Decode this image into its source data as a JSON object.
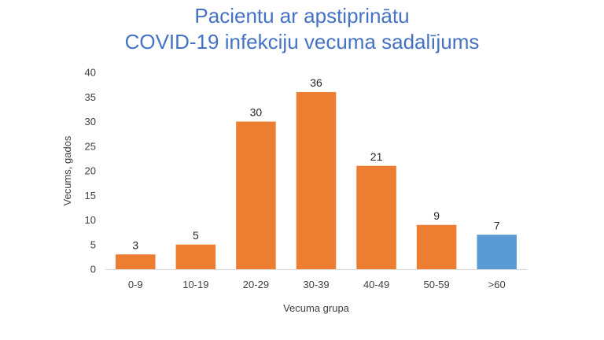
{
  "chart_data": {
    "type": "bar",
    "title_line1": "Pacientu ar apstiprinātu",
    "title_line2": "COVID-19 infekciju vecuma sadalījums",
    "xlabel": "Vecuma grupa",
    "ylabel": "Vecums, gados",
    "categories": [
      "0-9",
      "10-19",
      "20-29",
      "30-39",
      "40-49",
      "50-59",
      ">60"
    ],
    "values": [
      3,
      5,
      30,
      36,
      21,
      9,
      7
    ],
    "colors": [
      "#ED7D31",
      "#ED7D31",
      "#ED7D31",
      "#ED7D31",
      "#ED7D31",
      "#ED7D31",
      "#5B9BD5"
    ],
    "ylim": [
      0,
      40
    ],
    "yticks": [
      0,
      5,
      10,
      15,
      20,
      25,
      30,
      35,
      40
    ],
    "grid": false,
    "legend": "none"
  }
}
